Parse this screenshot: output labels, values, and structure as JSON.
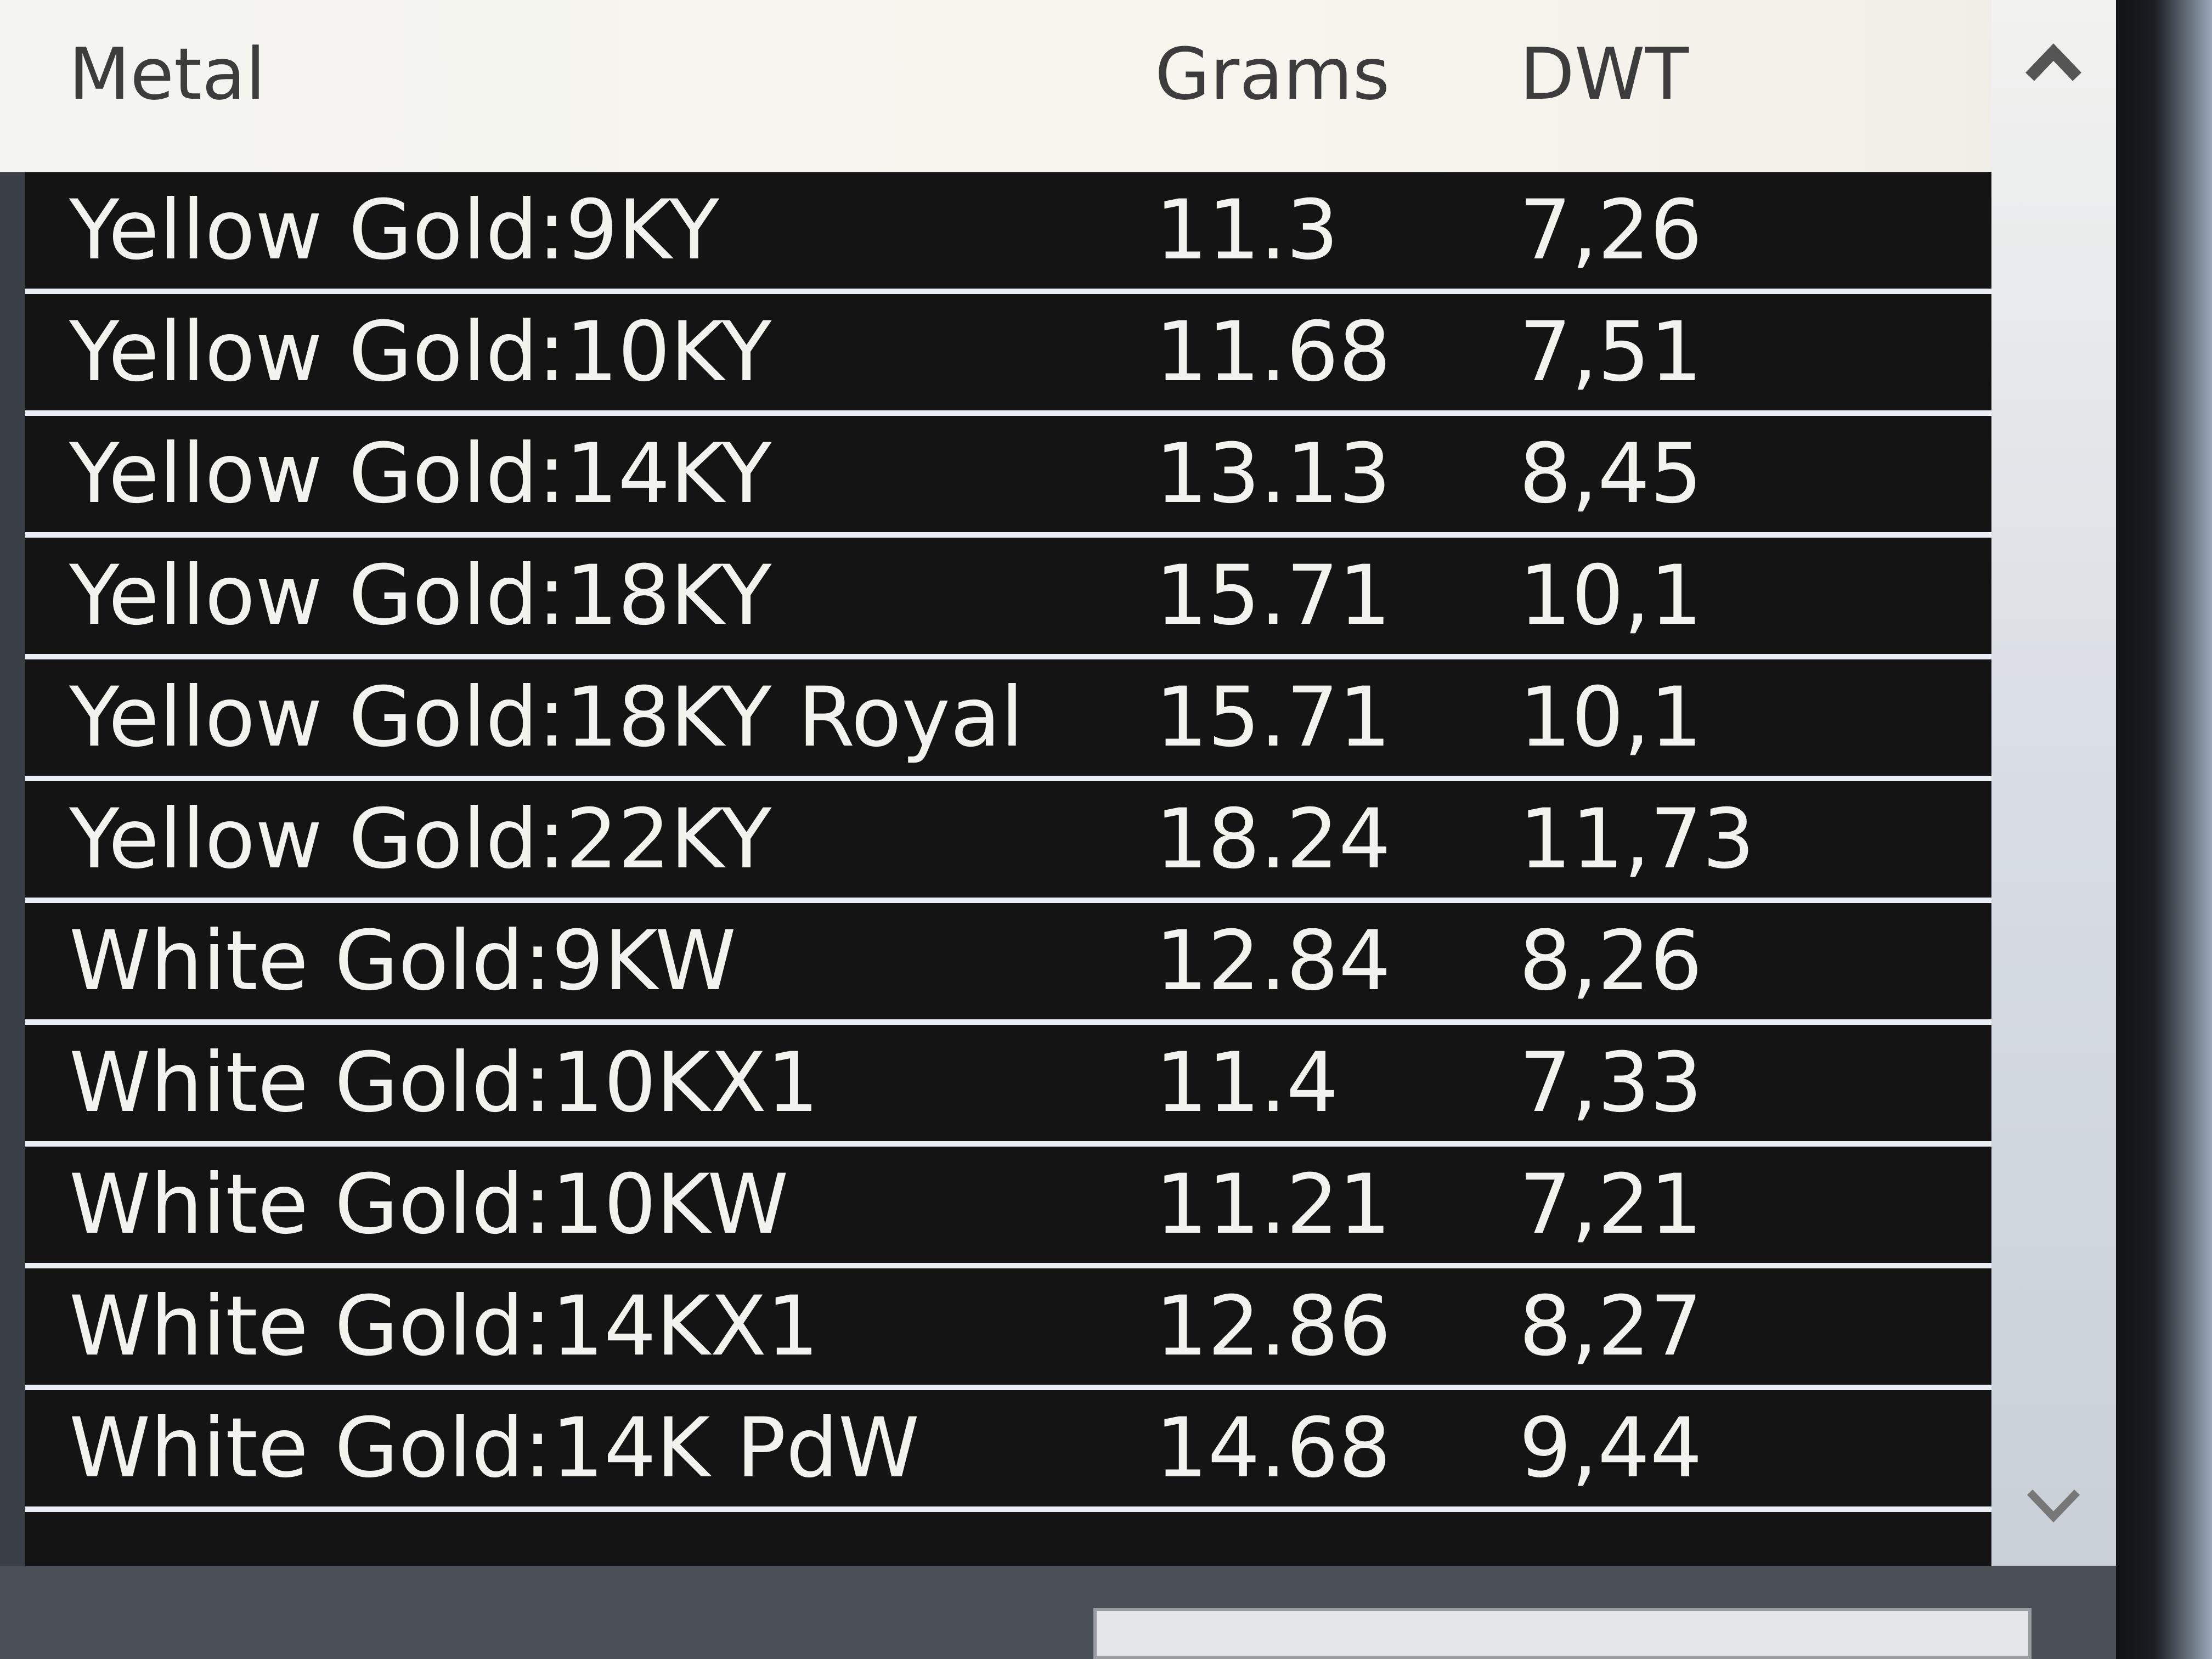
{
  "table": {
    "header": [
      "Metal",
      "Grams",
      "DWT"
    ],
    "rows": [
      [
        "Yellow Gold:9KY",
        "11.3",
        "7,26"
      ],
      [
        "Yellow Gold:10KY",
        "11.68",
        "7,51"
      ],
      [
        "Yellow Gold:14KY",
        "13.13",
        "8,45"
      ],
      [
        "Yellow Gold:18KY",
        "15.71",
        "10,1"
      ],
      [
        "Yellow Gold:18KY Royal",
        "15.71",
        "10,1"
      ],
      [
        "Yellow Gold:22KY",
        "18.24",
        "11,73"
      ],
      [
        "White Gold:9KW",
        "12.84",
        "8,26"
      ],
      [
        "White Gold:10KX1",
        "11.4",
        "7,33"
      ],
      [
        "White Gold:10KW",
        "11.21",
        "7,21"
      ],
      [
        "White Gold:14KX1",
        "12.86",
        "8,27"
      ],
      [
        "White Gold:14K PdW",
        "14.68",
        "9,44"
      ]
    ]
  }
}
